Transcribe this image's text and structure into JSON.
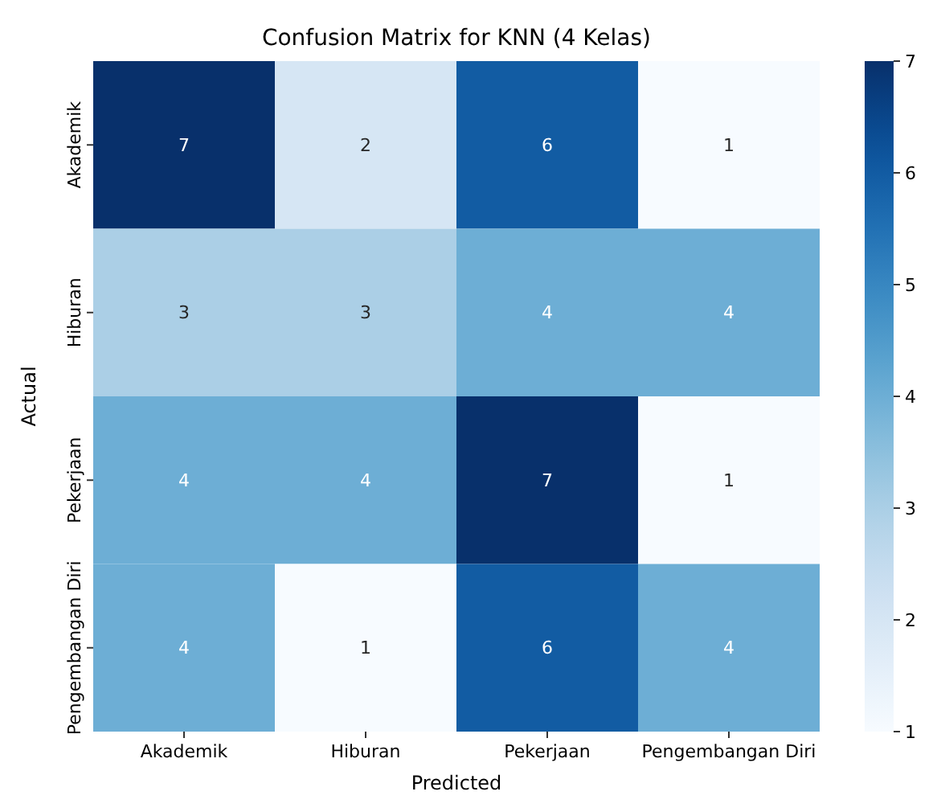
{
  "chart_data": {
    "type": "heatmap",
    "title": "Confusion Matrix for KNN (4 Kelas)",
    "xlabel": "Predicted",
    "ylabel": "Actual",
    "categories": [
      "Akademik",
      "Hiburan",
      "Pekerjaan",
      "Pengembangan Diri"
    ],
    "y_categories": [
      "Akademik",
      "Hiburan",
      "Pekerjaan",
      "Pengembangan Diri"
    ],
    "cells": [
      [
        7,
        2,
        6,
        1
      ],
      [
        3,
        3,
        4,
        4
      ],
      [
        4,
        4,
        7,
        1
      ],
      [
        4,
        1,
        6,
        4
      ]
    ],
    "clim": [
      1,
      7
    ],
    "cticks": [
      1,
      2,
      3,
      4,
      5,
      6,
      7
    ],
    "data_labels": true
  }
}
